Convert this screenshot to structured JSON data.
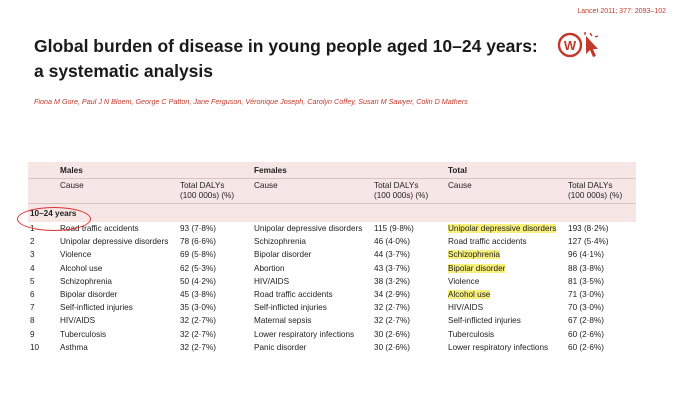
{
  "citation": "Lancet 2011; 377: 2093–102",
  "title_line1": "Global burden of disease in young people aged 10–24 years:",
  "title_line2": "a systematic analysis",
  "authors": "Fiona M Gore, Paul J N Bloem, George C Patton, Jane Ferguson, Véronique Joseph, Carolyn Coffey, Susan M Sawyer, Colin D Mathers",
  "logo_letter": "W",
  "table": {
    "groups": [
      "Males",
      "Females",
      "Total"
    ],
    "col_cause": "Cause",
    "col_dalys_1": "Total DALYs",
    "col_dalys_2": "(100 000s) (%)",
    "age_group": "10–24 years",
    "rows": [
      {
        "rank": "1",
        "m_cause": "Road traffic accidents",
        "m_val": "93 (7·8%)",
        "f_cause": "Unipolar depressive disorders",
        "f_val": "115 (9·8%)",
        "t_cause": "Unipolar depressive disorders",
        "t_val": "193 (8·2%)",
        "t_hl": true
      },
      {
        "rank": "2",
        "m_cause": "Unipolar depressive disorders",
        "m_val": "78 (6·6%)",
        "f_cause": "Schizophrenia",
        "f_val": "46 (4·0%)",
        "t_cause": "Road traffic accidents",
        "t_val": "127 (5·4%)",
        "t_hl": false
      },
      {
        "rank": "3",
        "m_cause": "Violence",
        "m_val": "69 (5·8%)",
        "f_cause": "Bipolar disorder",
        "f_val": "44 (3·7%)",
        "t_cause": "Schizophrenia",
        "t_val": "96 (4·1%)",
        "t_hl": true
      },
      {
        "rank": "4",
        "m_cause": "Alcohol use",
        "m_val": "62 (5·3%)",
        "f_cause": "Abortion",
        "f_val": "43 (3·7%)",
        "t_cause": "Bipolar disorder",
        "t_val": "88 (3·8%)",
        "t_hl": true
      },
      {
        "rank": "5",
        "m_cause": "Schizophrenia",
        "m_val": "50 (4·2%)",
        "f_cause": "HIV/AIDS",
        "f_val": "38 (3·2%)",
        "t_cause": "Violence",
        "t_val": "81 (3·5%)",
        "t_hl": false
      },
      {
        "rank": "6",
        "m_cause": "Bipolar disorder",
        "m_val": "45 (3·8%)",
        "f_cause": "Road traffic accidents",
        "f_val": "34 (2·9%)",
        "t_cause": "Alcohol use",
        "t_val": "71 (3·0%)",
        "t_hl": true
      },
      {
        "rank": "7",
        "m_cause": "Self-inflicted injuries",
        "m_val": "35 (3·0%)",
        "f_cause": "Self-inflicted injuries",
        "f_val": "32 (2·7%)",
        "t_cause": "HIV/AIDS",
        "t_val": "70 (3·0%)",
        "t_hl": false
      },
      {
        "rank": "8",
        "m_cause": "HIV/AIDS",
        "m_val": "32 (2·7%)",
        "f_cause": "Maternal sepsis",
        "f_val": "32 (2·7%)",
        "t_cause": "Self-inflicted injuries",
        "t_val": "67 (2·8%)",
        "t_hl": false
      },
      {
        "rank": "9",
        "m_cause": "Tuberculosis",
        "m_val": "32 (2·7%)",
        "f_cause": "Lower respiratory infections",
        "f_val": "30 (2·6%)",
        "t_cause": "Tuberculosis",
        "t_val": "60 (2·6%)",
        "t_hl": false
      },
      {
        "rank": "10",
        "m_cause": "Asthma",
        "m_val": "32 (2·7%)",
        "f_cause": "Panic disorder",
        "f_val": "30 (2·6%)",
        "t_cause": "Lower respiratory infections",
        "t_val": "60 (2·6%)",
        "t_hl": false
      }
    ]
  },
  "colors": {
    "accent": "#c0392b",
    "header_bg": "#f7e6e6",
    "highlight": "#f7f07a",
    "annotation_circle": "#dd3333"
  }
}
